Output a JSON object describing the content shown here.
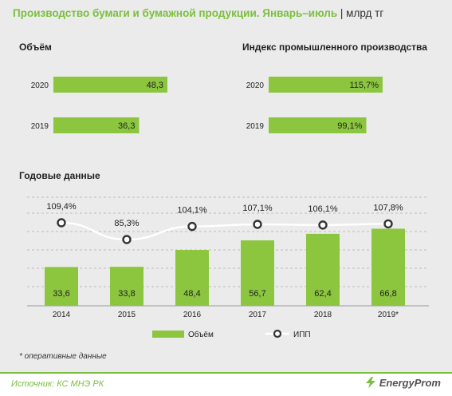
{
  "header": {
    "title": "Производство бумаги и бумажной продукции. Январь–июль",
    "unit": "| млрд тг"
  },
  "colors": {
    "accent": "#7bbf3e",
    "bar": "#8cc63f",
    "line": "#ffffff",
    "line_edge": "#333333"
  },
  "chart_data": [
    {
      "type": "bar",
      "title": "Объём",
      "orientation": "horizontal",
      "categories": [
        "2020",
        "2019"
      ],
      "values": [
        48.3,
        36.3
      ],
      "labels": [
        "48,3",
        "36,3"
      ]
    },
    {
      "type": "bar",
      "title": "Индекс промышленного производства",
      "orientation": "horizontal",
      "categories": [
        "2020",
        "2019"
      ],
      "values": [
        115.7,
        99.1
      ],
      "labels": [
        "115,7%",
        "99,1%"
      ]
    },
    {
      "type": "bar",
      "title": "Годовые данные",
      "categories": [
        "2014",
        "2015",
        "2016",
        "2017",
        "2018",
        "2019*"
      ],
      "series": [
        {
          "name": "Объём",
          "type": "bar",
          "values": [
            33.6,
            33.8,
            48.4,
            56.7,
            62.4,
            66.8
          ],
          "labels": [
            "33,6",
            "33,8",
            "48,4",
            "56,7",
            "62,4",
            "66,8"
          ]
        },
        {
          "name": "ИПП",
          "type": "line",
          "values": [
            109.4,
            85.3,
            104.1,
            107.1,
            106.1,
            107.8
          ],
          "labels": [
            "109,4%",
            "85,3%",
            "104,1%",
            "107,1%",
            "106,1%",
            "107,8%"
          ]
        }
      ],
      "legend": "bottom",
      "grid": true
    }
  ],
  "footnote": "* оперативные данные",
  "footer": {
    "source": "Источник: КС МНЭ РК",
    "brand": "EnergyProm"
  }
}
